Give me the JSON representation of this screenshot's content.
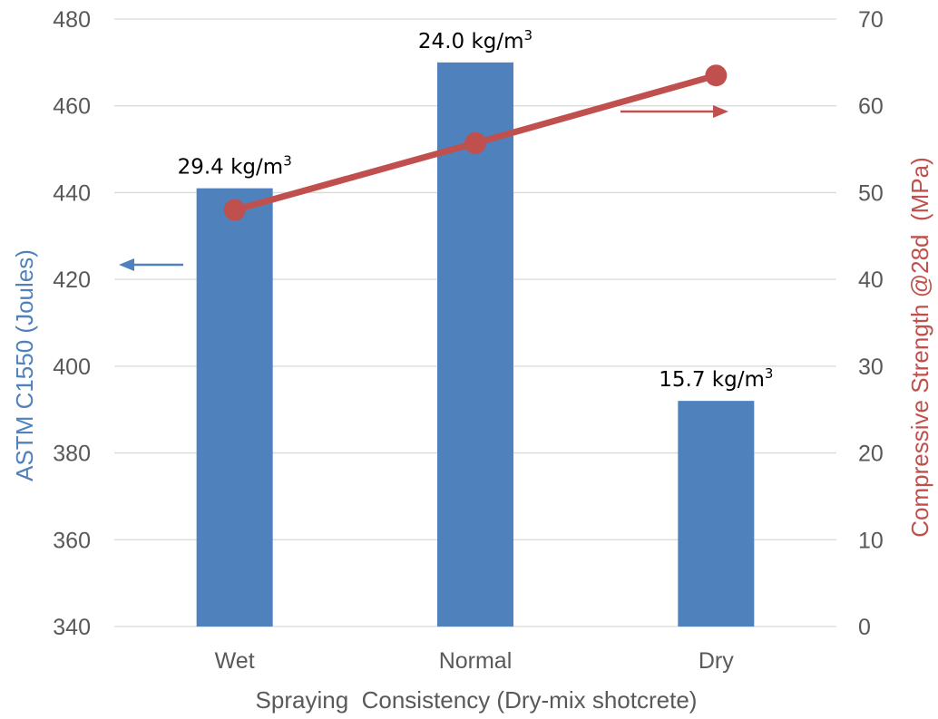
{
  "chart_data": {
    "type": "bar",
    "categories": [
      "Wet",
      "Normal",
      "Dry"
    ],
    "series": [
      {
        "type": "bar",
        "axis": "left",
        "values": [
          441,
          470,
          392
        ],
        "color": "#4F81BD",
        "data_labels": [
          {
            "value": "29.4",
            "unit": "kg/m",
            "sup": "3"
          },
          {
            "value": "24.0",
            "unit": "kg/m",
            "sup": "3"
          },
          {
            "value": "15.7",
            "unit": "kg/m",
            "sup": "3"
          }
        ]
      },
      {
        "type": "line",
        "axis": "right",
        "values": [
          48,
          55.7,
          63.5
        ],
        "color": "#C0504D",
        "marker": "circle"
      }
    ],
    "xlabel": "Spraying  Consistency (Dry-mix shotcrete)",
    "ylabel_left": "ASTM C1550 (Joules)",
    "ylabel_right": "Compressive Strength @28d  (MPa)",
    "ylim_left": [
      340,
      480
    ],
    "yticks_left": [
      340,
      360,
      380,
      400,
      420,
      440,
      460,
      480
    ],
    "ylim_right": [
      0,
      70
    ],
    "yticks_right": [
      0,
      10,
      20,
      30,
      40,
      50,
      60,
      70
    ],
    "grid": true,
    "legend": "none",
    "annotations": [
      {
        "type": "arrow",
        "direction": "left",
        "indicates": "left-axis",
        "color": "#4F81BD"
      },
      {
        "type": "arrow",
        "direction": "right",
        "indicates": "right-axis",
        "color": "#C0504D"
      }
    ],
    "colors": {
      "left_axis_title": "#4F81BD",
      "right_axis_title": "#C0504D",
      "ticks": "#595959",
      "grid": "#D9D9D9"
    }
  }
}
